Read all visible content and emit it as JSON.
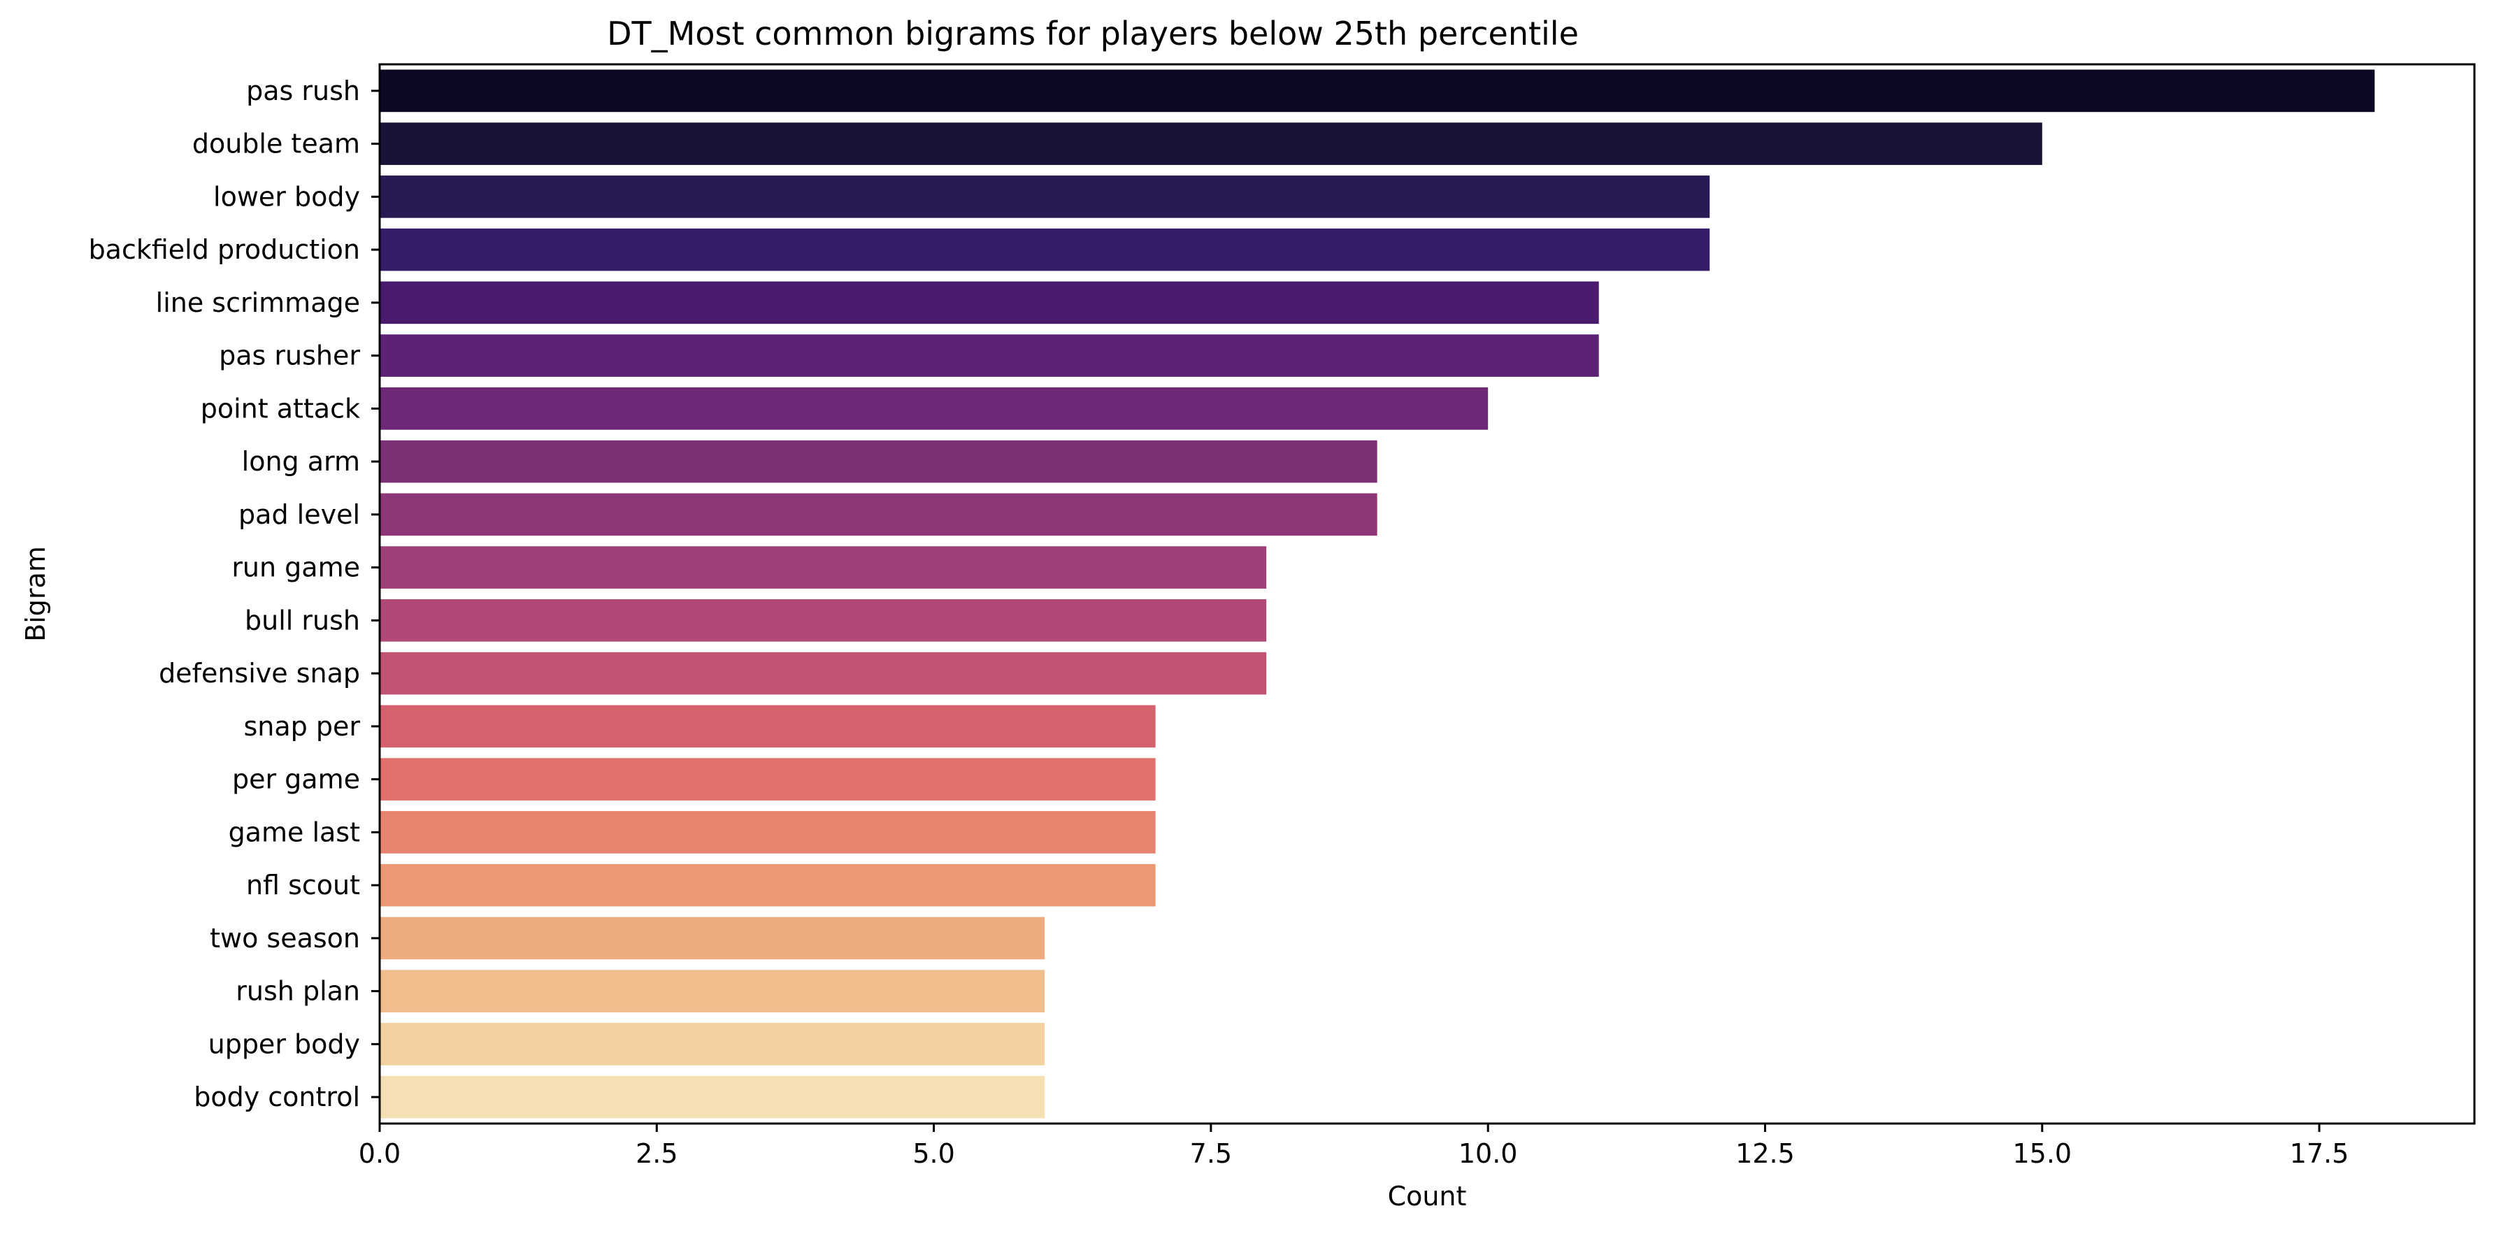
{
  "chart_data": {
    "type": "bar",
    "orientation": "horizontal",
    "title": "DT_Most common bigrams for players below 25th percentile",
    "xlabel": "Count",
    "ylabel": "Bigram",
    "xlim": [
      0,
      18.9
    ],
    "xticks": [
      0.0,
      2.5,
      5.0,
      7.5,
      10.0,
      12.5,
      15.0,
      17.5
    ],
    "xtick_labels": [
      "0.0",
      "2.5",
      "5.0",
      "7.5",
      "10.0",
      "12.5",
      "15.0",
      "17.5"
    ],
    "grid": false,
    "colormap": "magma",
    "categories": [
      "pas rush",
      "double team",
      "lower body",
      "backfield production",
      "line scrimmage",
      "pas rusher",
      "point attack",
      "long arm",
      "pad level",
      "run game",
      "bull rush",
      "defensive snap",
      "snap per",
      "per game",
      "game last",
      "nfl scout",
      "two season",
      "rush plan",
      "upper body",
      "body control"
    ],
    "values": [
      18,
      15,
      12,
      12,
      11,
      11,
      10,
      9,
      9,
      8,
      8,
      8,
      7,
      7,
      7,
      7,
      6,
      6,
      6,
      6
    ],
    "colors": [
      "#0b0924",
      "#1a1238",
      "#281a52",
      "#361b66",
      "#4a1b6d",
      "#5e2274",
      "#6d2975",
      "#7c3176",
      "#8d3778",
      "#9f4078",
      "#b04977",
      "#c35373",
      "#d5616e",
      "#e1706c",
      "#e8836f",
      "#ed9874",
      "#eeab7f",
      "#f0bd8c",
      "#f3d09f",
      "#f4e0b2"
    ]
  }
}
